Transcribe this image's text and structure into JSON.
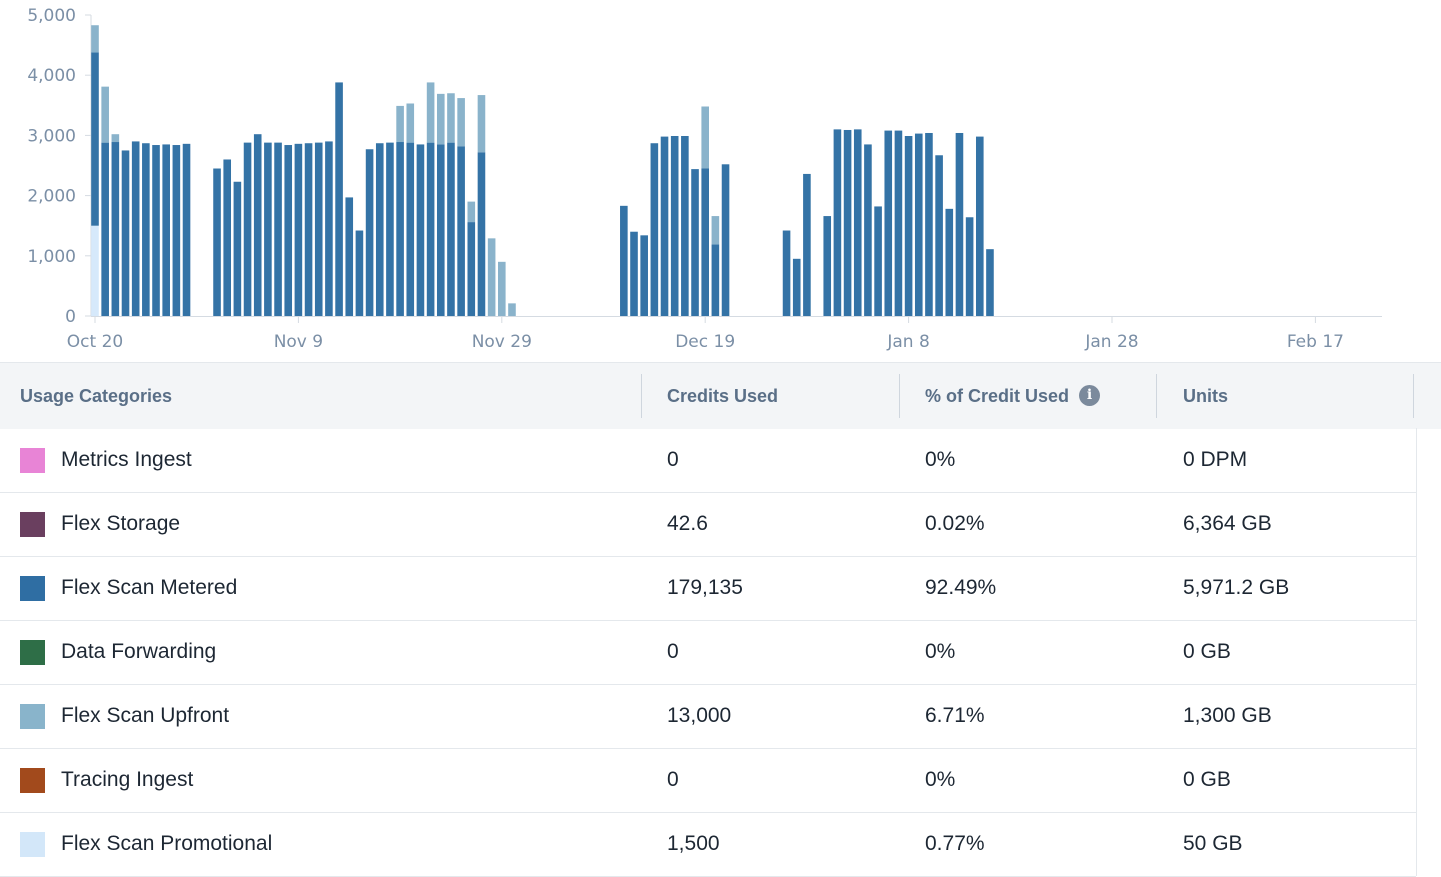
{
  "chart_data": {
    "type": "bar",
    "stacked": true,
    "x_start": "Oct 20",
    "x_tick_labels": [
      "Oct 20",
      "Nov 9",
      "Nov 29",
      "Dec 19",
      "Jan 8",
      "Jan 28",
      "Feb 17"
    ],
    "y_tick_labels": [
      "0",
      "1,000",
      "2,000",
      "3,000",
      "4,000",
      "5,000"
    ],
    "ylim": [
      0,
      5000
    ],
    "series": [
      {
        "name": "Flex Scan Promotional",
        "color": "#d6e9fb",
        "values": [
          1500,
          0,
          0,
          0,
          0,
          0,
          0,
          0,
          0,
          0,
          0,
          0,
          0,
          0,
          0,
          0,
          0,
          0,
          0,
          0,
          0,
          0,
          0,
          0,
          0,
          0,
          0,
          0,
          0,
          0,
          0,
          0,
          0,
          0,
          0,
          0,
          0,
          0,
          0,
          0,
          0,
          0,
          0,
          0,
          0,
          0,
          0,
          0,
          0,
          0,
          0,
          0,
          0,
          0,
          0,
          0,
          0,
          0,
          0,
          0,
          0,
          0,
          0,
          0,
          0,
          0,
          0,
          0,
          0,
          0,
          0,
          0,
          0,
          0,
          0,
          0,
          0,
          0,
          0,
          0,
          0,
          0,
          0,
          0,
          0,
          0,
          0,
          0,
          0
        ]
      },
      {
        "name": "Flex Scan Metered",
        "color": "#3473a6",
        "values": [
          2880,
          2880,
          2890,
          2750,
          2900,
          2870,
          2840,
          2850,
          2840,
          2860,
          0,
          0,
          2450,
          2600,
          2230,
          2880,
          3020,
          2880,
          2880,
          2840,
          2860,
          2870,
          2880,
          2900,
          3880,
          1970,
          1420,
          2770,
          2870,
          2880,
          2890,
          2880,
          2850,
          2880,
          2850,
          2880,
          2820,
          1560,
          2720,
          0,
          0,
          0,
          0,
          0,
          0,
          0,
          0,
          0,
          0,
          0,
          0,
          0,
          1830,
          1400,
          1340,
          2870,
          2980,
          2990,
          2990,
          2440,
          2450,
          1190,
          2520,
          0,
          0,
          0,
          0,
          0,
          1420,
          950,
          2360,
          0,
          1660,
          3100,
          3090,
          3100,
          2850,
          1820,
          3080,
          3080,
          2990,
          3030,
          3040,
          2670,
          1780,
          3040,
          1640,
          2980,
          1110
        ]
      },
      {
        "name": "Flex Scan Upfront",
        "color": "#8ab3cb",
        "values": [
          450,
          930,
          130,
          0,
          0,
          0,
          0,
          0,
          0,
          0,
          0,
          0,
          0,
          0,
          0,
          0,
          0,
          0,
          0,
          0,
          0,
          0,
          0,
          0,
          0,
          0,
          0,
          0,
          0,
          0,
          600,
          650,
          0,
          1000,
          840,
          820,
          800,
          340,
          950,
          1290,
          900,
          210,
          0,
          0,
          0,
          0,
          0,
          0,
          0,
          0,
          0,
          0,
          0,
          0,
          0,
          0,
          0,
          0,
          0,
          0,
          1030,
          470,
          0,
          0,
          0,
          0,
          0,
          0,
          0,
          0,
          0,
          0,
          0,
          0,
          0,
          0,
          0,
          0,
          0,
          0,
          0,
          0,
          0,
          0,
          0,
          0,
          0,
          0,
          0
        ]
      }
    ]
  },
  "table": {
    "headers": [
      "Usage Categories",
      "Credits Used",
      "% of Credit Used",
      "Units"
    ],
    "info_icon": "info-icon",
    "rows": [
      {
        "category": "Metrics Ingest",
        "color": "#e884d6",
        "credits": "0",
        "percent": "0%",
        "units": "0 DPM"
      },
      {
        "category": "Flex Storage",
        "color": "#6a3f5f",
        "credits": "42.6",
        "percent": "0.02%",
        "units": "6,364 GB"
      },
      {
        "category": "Flex Scan Metered",
        "color": "#2f6ea3",
        "credits": "179,135",
        "percent": "92.49%",
        "units": "5,971.2 GB"
      },
      {
        "category": "Data Forwarding",
        "color": "#2e6e47",
        "credits": "0",
        "percent": "0%",
        "units": "0 GB"
      },
      {
        "category": "Flex Scan Upfront",
        "color": "#89b4cb",
        "credits": "13,000",
        "percent": "6.71%",
        "units": "1,300 GB"
      },
      {
        "category": "Tracing Ingest",
        "color": "#a24a1c",
        "credits": "0",
        "percent": "0%",
        "units": "0 GB"
      },
      {
        "category": "Flex Scan Promotional",
        "color": "#d3e7f9",
        "credits": "1,500",
        "percent": "0.77%",
        "units": "50 GB"
      }
    ]
  }
}
